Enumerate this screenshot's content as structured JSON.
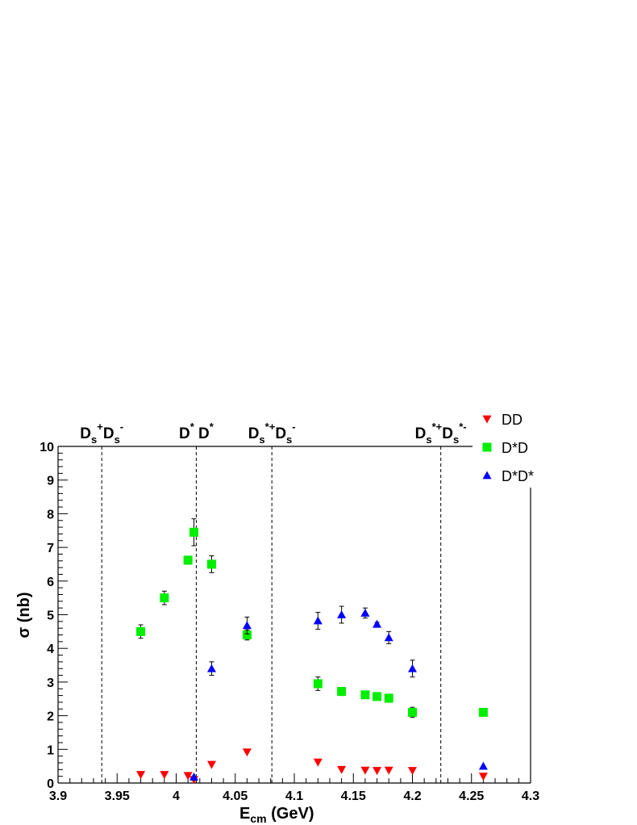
{
  "chart_data": {
    "type": "scatter",
    "xlabel_main": "E",
    "xlabel_sub": "cm",
    "xlabel_unit": " (GeV)",
    "ylabel": "σ (nb)",
    "xlim": [
      3.9,
      4.3
    ],
    "ylim": [
      0,
      10
    ],
    "x_ticks": [
      "3.9",
      "3.95",
      "4",
      "4.05",
      "4.1",
      "4.15",
      "4.2",
      "4.25",
      "4.3"
    ],
    "y_ticks": [
      "0",
      "1",
      "2",
      "3",
      "4",
      "5",
      "6",
      "7",
      "8",
      "9",
      "10"
    ],
    "grid": false,
    "legend_position": "top-right, outside plot",
    "thresholds": [
      {
        "x": 3.937,
        "label": "D_s^+D_s^-"
      },
      {
        "x": 4.017,
        "label": "D^* D^*"
      },
      {
        "x": 4.081,
        "label": "D_s^{*+}D_s^-"
      },
      {
        "x": 4.224,
        "label": "D_s^{*+}D_s^{*-}"
      }
    ],
    "series": [
      {
        "name": "DD",
        "color": "#ff0000",
        "marker": "triangle-down",
        "points": [
          {
            "x": 3.97,
            "y": 0.25,
            "err": 0
          },
          {
            "x": 3.99,
            "y": 0.25,
            "err": 0
          },
          {
            "x": 4.01,
            "y": 0.22,
            "err": 0
          },
          {
            "x": 4.015,
            "y": 0.1,
            "err": 0
          },
          {
            "x": 4.03,
            "y": 0.55,
            "err": 0
          },
          {
            "x": 4.06,
            "y": 0.92,
            "err": 0
          },
          {
            "x": 4.12,
            "y": 0.62,
            "err": 0
          },
          {
            "x": 4.14,
            "y": 0.4,
            "err": 0
          },
          {
            "x": 4.16,
            "y": 0.38,
            "err": 0
          },
          {
            "x": 4.17,
            "y": 0.37,
            "err": 0
          },
          {
            "x": 4.18,
            "y": 0.38,
            "err": 0
          },
          {
            "x": 4.2,
            "y": 0.37,
            "err": 0
          },
          {
            "x": 4.26,
            "y": 0.2,
            "err": 0
          }
        ]
      },
      {
        "name": "D*D",
        "color": "#00ee00",
        "marker": "square",
        "points": [
          {
            "x": 3.97,
            "y": 4.5,
            "err": 0.2
          },
          {
            "x": 3.99,
            "y": 5.5,
            "err": 0.2
          },
          {
            "x": 4.01,
            "y": 6.62,
            "err": 0.12
          },
          {
            "x": 4.015,
            "y": 7.45,
            "err": 0.4
          },
          {
            "x": 4.03,
            "y": 6.5,
            "err": 0.25
          },
          {
            "x": 4.06,
            "y": 4.4,
            "err": 0.15
          },
          {
            "x": 4.12,
            "y": 2.95,
            "err": 0.2
          },
          {
            "x": 4.14,
            "y": 2.72,
            "err": 0.12
          },
          {
            "x": 4.16,
            "y": 2.62,
            "err": 0.05
          },
          {
            "x": 4.17,
            "y": 2.57,
            "err": 0.05
          },
          {
            "x": 4.18,
            "y": 2.52,
            "err": 0.12
          },
          {
            "x": 4.2,
            "y": 2.1,
            "err": 0.15
          },
          {
            "x": 4.26,
            "y": 2.1,
            "err": 0
          }
        ]
      },
      {
        "name": "D*D*",
        "color": "#0000ff",
        "marker": "triangle-up",
        "points": [
          {
            "x": 4.015,
            "y": 0.18,
            "err": 0
          },
          {
            "x": 4.03,
            "y": 3.4,
            "err": 0.2
          },
          {
            "x": 4.06,
            "y": 4.68,
            "err": 0.25
          },
          {
            "x": 4.12,
            "y": 4.82,
            "err": 0.25
          },
          {
            "x": 4.14,
            "y": 5.0,
            "err": 0.25
          },
          {
            "x": 4.16,
            "y": 5.05,
            "err": 0.15
          },
          {
            "x": 4.17,
            "y": 4.72,
            "err": 0.05
          },
          {
            "x": 4.18,
            "y": 4.32,
            "err": 0.18
          },
          {
            "x": 4.2,
            "y": 3.4,
            "err": 0.25
          },
          {
            "x": 4.26,
            "y": 0.5,
            "err": 0
          }
        ]
      }
    ]
  }
}
